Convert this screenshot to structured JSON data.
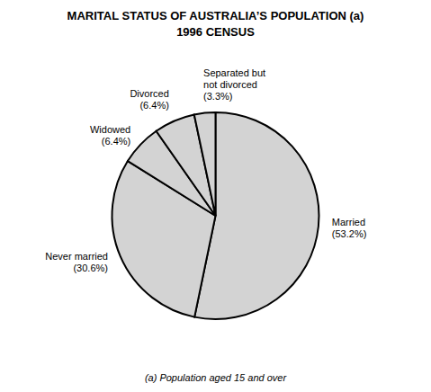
{
  "chart_data": {
    "type": "pie",
    "title": "MARITAL STATUS OF AUSTRALIA’S POPULATION (a)",
    "subtitle": "1996 CENSUS",
    "annotations": [
      "(a) Population aged 15 and over"
    ],
    "categories": [
      "Married\n(53.2%)",
      "Never married\n(30.6%)",
      "Widowed\n(6.4%)",
      "Divorced\n(6.4%)",
      "Separated but\nnot divorced\n(3.3%)"
    ],
    "values": [
      53.2,
      30.6,
      6.4,
      6.4,
      3.3
    ],
    "colors": [
      "#d3d3d3",
      "#d3d3d3",
      "#d3d3d3",
      "#d3d3d3",
      "#d3d3d3"
    ]
  }
}
